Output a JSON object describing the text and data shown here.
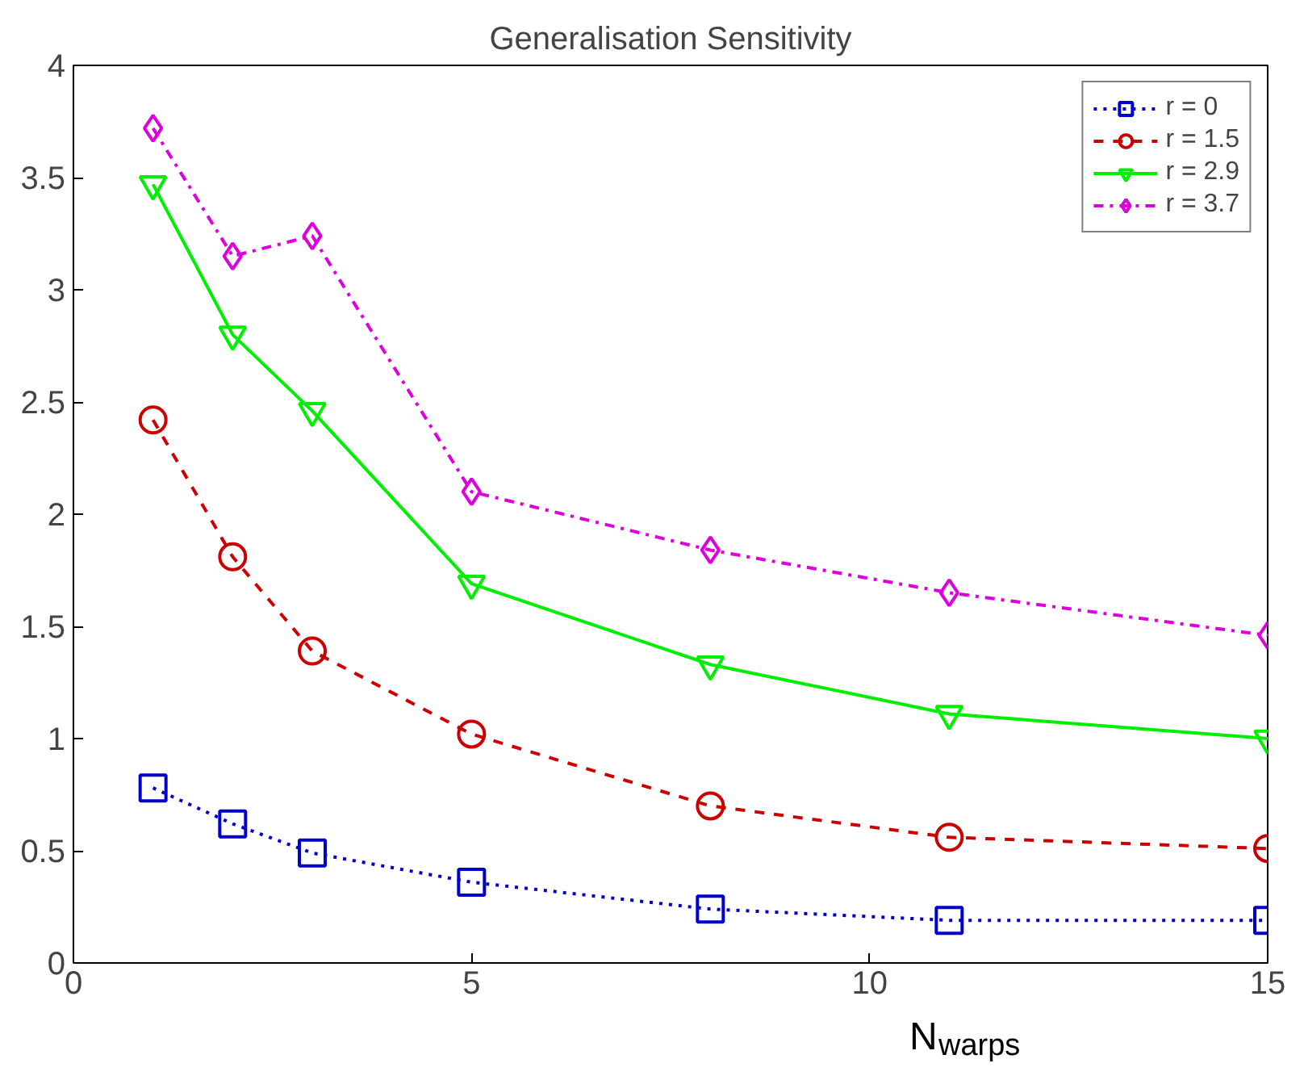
{
  "chart_data": {
    "type": "line",
    "title": "Generalisation Sensitivity",
    "xlabel": "N$_{warps}$",
    "x": [
      1,
      2,
      3,
      5,
      8,
      11,
      15
    ],
    "series": [
      {
        "name": "r = 0",
        "color": "#0000cc",
        "values": [
          0.78,
          0.62,
          0.49,
          0.36,
          0.24,
          0.19,
          0.19
        ],
        "marker": "square",
        "line_style": "dotted"
      },
      {
        "name": "r = 1.5",
        "color": "#cc0000",
        "values": [
          2.42,
          1.81,
          1.39,
          1.02,
          0.7,
          0.56,
          0.51
        ],
        "marker": "circle",
        "line_style": "dashed"
      },
      {
        "name": "r = 2.9",
        "color": "#00ee00",
        "values": [
          3.47,
          2.8,
          2.46,
          1.69,
          1.33,
          1.11,
          1.0
        ],
        "marker": "triangle",
        "line_style": "solid"
      },
      {
        "name": "r = 3.7",
        "color": "#dd00dd",
        "values": [
          3.72,
          3.15,
          3.24,
          2.1,
          1.84,
          1.65,
          1.46
        ],
        "marker": "diamond",
        "line_style": "dashdot"
      }
    ],
    "xlim": [
      0,
      15
    ],
    "ylim": [
      0,
      4
    ],
    "xticks": [
      0,
      5,
      10,
      15
    ],
    "yticks": [
      0,
      0.5,
      1,
      1.5,
      2,
      2.5,
      3,
      3.5,
      4
    ],
    "grid": false,
    "legend": "top right"
  }
}
